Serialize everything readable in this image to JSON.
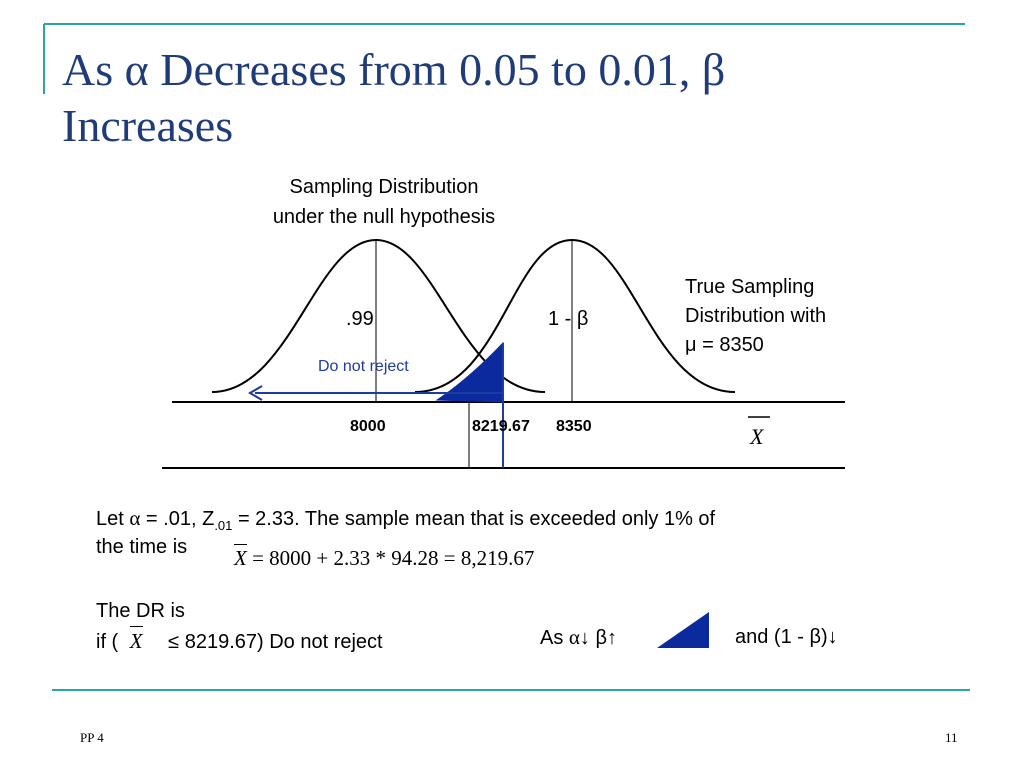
{
  "slide": {
    "title_line1": "As α Decreases from 0.05 to 0.01, β",
    "title_line2": "Increases",
    "accent_color": "#1f3c78",
    "rule_color": "#2aa6a6"
  },
  "diagram": {
    "null_caption": [
      "Sampling Distribution",
      "under the null hypothesis"
    ],
    "true_caption": [
      "True Sampling",
      "Distribution with",
      "μ = 8350"
    ],
    "region_null_label": ".99",
    "region_true_label": "1 - β",
    "arrow_label": "Do not reject",
    "tick_labels": [
      "8000",
      "8219.67",
      "8350"
    ],
    "axis_symbol": "X"
  },
  "text": {
    "let_prefix": "Let ",
    "let_alpha": "α",
    "let_middle": " = .01,  Z",
    "let_sub": ".01",
    "let_suffix": " = 2.33. The sample mean that is exceeded only 1% of",
    "line2": "the time is",
    "formula_x": "X",
    "formula_rest": " = 8000 + 2.33 * 94.28 = 8,219.67",
    "dr_line": "The DR is",
    "if_prefix": "if (",
    "if_x": "X",
    "if_suffix": "≤ 8219.67) Do not reject",
    "as_prefix": "As ",
    "as_alpha": "α",
    "as_down": "↓",
    "as_beta": " β↑",
    "and_text": "and (1 - β)↓"
  },
  "footer": {
    "left": "PP 4",
    "page_number": "11"
  }
}
